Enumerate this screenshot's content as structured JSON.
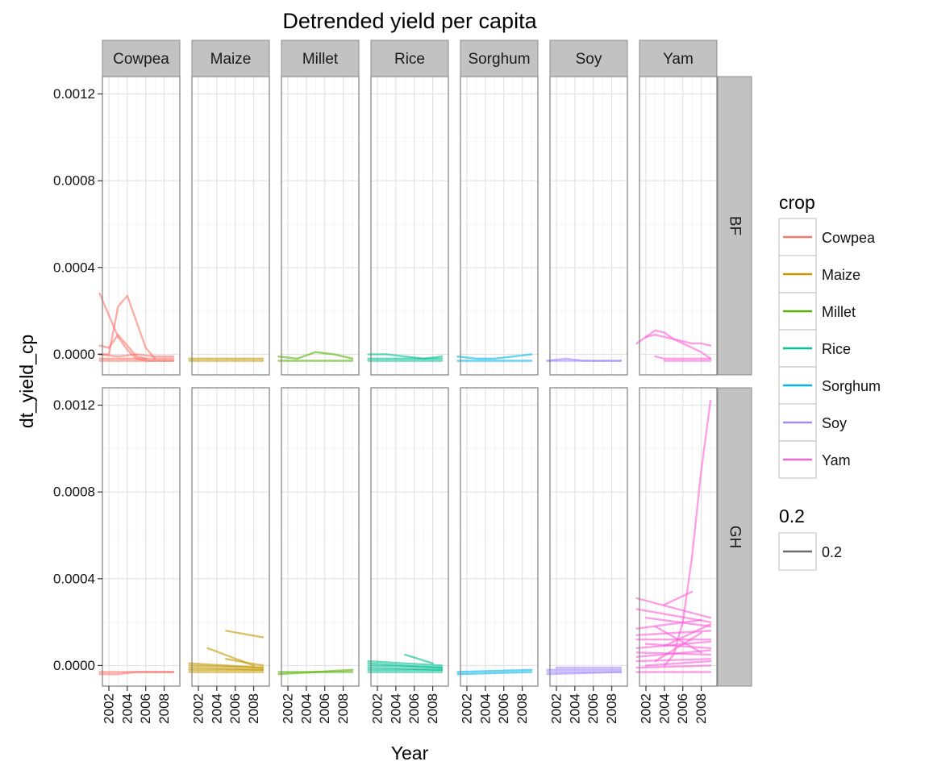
{
  "chart_data": {
    "type": "line",
    "title": "Detrended yield per capita",
    "xlabel": "Year",
    "ylabel": "dt_yield_cp",
    "xlim": [
      2001.3,
      2009.7
    ],
    "ylim": [
      -9.5e-05,
      0.00128
    ],
    "x_ticks": [
      2002,
      2004,
      2006,
      2008
    ],
    "x_tick_labels": [
      "2002",
      "2004",
      "2006",
      "2008"
    ],
    "y_ticks": [
      0.0,
      0.0004,
      0.0008,
      0.0012
    ],
    "y_tick_labels": [
      "0.0000",
      "0.0004",
      "0.0008",
      "0.0012"
    ],
    "grid": true,
    "facet_cols": [
      "Cowpea",
      "Maize",
      "Millet",
      "Rice",
      "Sorghum",
      "Soy",
      "Yam"
    ],
    "facet_rows": [
      "BF",
      "GH"
    ],
    "colors": {
      "Cowpea": "#F8766D",
      "Maize": "#C49A00",
      "Millet": "#53B400",
      "Rice": "#00C094",
      "Sorghum": "#00B6EB",
      "Soy": "#A58AFF",
      "Yam": "#FB61D7"
    },
    "legend": {
      "position": "right",
      "crop_title": "crop",
      "crop_items": [
        "Cowpea",
        "Maize",
        "Millet",
        "Rice",
        "Sorghum",
        "Soy",
        "Yam"
      ],
      "alpha_title": "0.2",
      "alpha_items": [
        "0.2"
      ]
    },
    "series": [
      {
        "facet": [
          "BF",
          "Cowpea"
        ],
        "x": [
          2001,
          2002,
          2003,
          2004,
          2005,
          2006,
          2007,
          2008,
          2009
        ],
        "y": [
          0.00028,
          0.00018,
          8e-05,
          2e-05,
          -2e-05,
          -3e-05,
          -3e-05,
          -3e-05,
          -3e-05
        ]
      },
      {
        "facet": [
          "BF",
          "Cowpea"
        ],
        "x": [
          2001,
          2002,
          2003,
          2004,
          2005,
          2006,
          2007
        ],
        "y": [
          0.0,
          0.0,
          0.00022,
          0.00027,
          0.00015,
          3e-05,
          -2e-05
        ]
      },
      {
        "facet": [
          "BF",
          "Cowpea"
        ],
        "x": [
          2001,
          2002,
          2003,
          2004,
          2005,
          2006
        ],
        "y": [
          4e-05,
          3e-05,
          9e-05,
          4e-05,
          -1e-05,
          -2e-05
        ]
      },
      {
        "facet": [
          "BF",
          "Cowpea"
        ],
        "x": [
          2001,
          2003,
          2005,
          2007,
          2009
        ],
        "y": [
          0.0,
          -1e-05,
          0.0,
          -1e-05,
          -1e-05
        ]
      },
      {
        "facet": [
          "BF",
          "Cowpea"
        ],
        "x": [
          2001,
          2003,
          2005,
          2007,
          2009
        ],
        "y": [
          -2e-05,
          -2e-05,
          -2e-05,
          -2e-05,
          -2e-05
        ]
      },
      {
        "facet": [
          "BF",
          "Cowpea"
        ],
        "x": [
          2001,
          2003,
          2005,
          2007,
          2009
        ],
        "y": [
          -3e-05,
          -3e-05,
          -3e-05,
          -3e-05,
          -3e-05
        ]
      },
      {
        "facet": [
          "BF",
          "Maize"
        ],
        "x": [
          2001,
          2003,
          2005,
          2007,
          2009
        ],
        "y": [
          -2e-05,
          -2e-05,
          -2e-05,
          -2e-05,
          -2e-05
        ]
      },
      {
        "facet": [
          "BF",
          "Maize"
        ],
        "x": [
          2001,
          2003,
          2005,
          2007,
          2009
        ],
        "y": [
          -3e-05,
          -3e-05,
          -3e-05,
          -3e-05,
          -3e-05
        ]
      },
      {
        "facet": [
          "BF",
          "Millet"
        ],
        "x": [
          2001,
          2003,
          2005,
          2007,
          2009
        ],
        "y": [
          -1e-05,
          -2e-05,
          1e-05,
          0.0,
          -2e-05
        ]
      },
      {
        "facet": [
          "BF",
          "Millet"
        ],
        "x": [
          2001,
          2003,
          2005,
          2007,
          2009
        ],
        "y": [
          -3e-05,
          -3e-05,
          -3e-05,
          -3e-05,
          -3e-05
        ]
      },
      {
        "facet": [
          "BF",
          "Rice"
        ],
        "x": [
          2001,
          2003,
          2005,
          2007,
          2009
        ],
        "y": [
          0.0,
          0.0,
          -1e-05,
          -2e-05,
          -1e-05
        ]
      },
      {
        "facet": [
          "BF",
          "Rice"
        ],
        "x": [
          2001,
          2003,
          2005,
          2007,
          2009
        ],
        "y": [
          -2e-05,
          -2e-05,
          -2e-05,
          -2e-05,
          -2e-05
        ]
      },
      {
        "facet": [
          "BF",
          "Rice"
        ],
        "x": [
          2001,
          2003,
          2005,
          2007,
          2009
        ],
        "y": [
          -3e-05,
          -3e-05,
          -3e-05,
          -3e-05,
          -3e-05
        ]
      },
      {
        "facet": [
          "BF",
          "Sorghum"
        ],
        "x": [
          2001,
          2003,
          2005,
          2007,
          2009
        ],
        "y": [
          -1e-05,
          -2e-05,
          -2e-05,
          -1e-05,
          0.0
        ]
      },
      {
        "facet": [
          "BF",
          "Sorghum"
        ],
        "x": [
          2001,
          2003,
          2005,
          2007,
          2009
        ],
        "y": [
          -3e-05,
          -3e-05,
          -3e-05,
          -3e-05,
          -3e-05
        ]
      },
      {
        "facet": [
          "BF",
          "Soy"
        ],
        "x": [
          2001,
          2003,
          2005,
          2007,
          2009
        ],
        "y": [
          -3e-05,
          -2e-05,
          -3e-05,
          -3e-05,
          -3e-05
        ]
      },
      {
        "facet": [
          "BF",
          "Soy"
        ],
        "x": [
          2001,
          2003,
          2005,
          2007,
          2009
        ],
        "y": [
          -3e-05,
          -3e-05,
          -3e-05,
          -3e-05,
          -3e-05
        ]
      },
      {
        "facet": [
          "BF",
          "Yam"
        ],
        "x": [
          2001,
          2002,
          2003,
          2004,
          2005,
          2006,
          2007,
          2008,
          2009
        ],
        "y": [
          5e-05,
          8e-05,
          0.00011,
          0.0001,
          7e-05,
          6e-05,
          5e-05,
          5e-05,
          4e-05
        ]
      },
      {
        "facet": [
          "BF",
          "Yam"
        ],
        "x": [
          2002,
          2003,
          2004,
          2005,
          2006,
          2007,
          2008,
          2009
        ],
        "y": [
          8e-05,
          9e-05,
          8e-05,
          7e-05,
          5e-05,
          3e-05,
          1e-05,
          -2e-05
        ]
      },
      {
        "facet": [
          "BF",
          "Yam"
        ],
        "x": [
          2003,
          2004,
          2005,
          2009
        ],
        "y": [
          -1e-05,
          -2e-05,
          -2e-05,
          -2e-05
        ]
      },
      {
        "facet": [
          "BF",
          "Yam"
        ],
        "x": [
          2004,
          2009
        ],
        "y": [
          -3e-05,
          -3e-05
        ]
      },
      {
        "facet": [
          "GH",
          "Cowpea"
        ],
        "x": [
          2001,
          2003,
          2005,
          2007,
          2009
        ],
        "y": [
          -3e-05,
          -3e-05,
          -3e-05,
          -3e-05,
          -3e-05
        ]
      },
      {
        "facet": [
          "GH",
          "Cowpea"
        ],
        "x": [
          2001,
          2003,
          2005,
          2007,
          2009
        ],
        "y": [
          -4e-05,
          -4e-05,
          -3e-05,
          -3e-05,
          -3e-05
        ]
      },
      {
        "facet": [
          "GH",
          "Maize"
        ],
        "x": [
          2005,
          2009
        ],
        "y": [
          0.00016,
          0.00013
        ]
      },
      {
        "facet": [
          "GH",
          "Maize"
        ],
        "x": [
          2003,
          2008
        ],
        "y": [
          8e-05,
          0.0
        ]
      },
      {
        "facet": [
          "GH",
          "Maize"
        ],
        "x": [
          2005,
          2009
        ],
        "y": [
          3e-05,
          0.0
        ]
      },
      {
        "facet": [
          "GH",
          "Maize"
        ],
        "x": [
          2001,
          2009
        ],
        "y": [
          1e-05,
          -1e-05
        ]
      },
      {
        "facet": [
          "GH",
          "Maize"
        ],
        "x": [
          2001,
          2009
        ],
        "y": [
          0.0,
          -1e-05
        ]
      },
      {
        "facet": [
          "GH",
          "Maize"
        ],
        "x": [
          2001,
          2009
        ],
        "y": [
          -1e-05,
          -2e-05
        ]
      },
      {
        "facet": [
          "GH",
          "Maize"
        ],
        "x": [
          2001,
          2009
        ],
        "y": [
          -2e-05,
          -2e-05
        ]
      },
      {
        "facet": [
          "GH",
          "Maize"
        ],
        "x": [
          2001,
          2009
        ],
        "y": [
          -3e-05,
          -3e-05
        ]
      },
      {
        "facet": [
          "GH",
          "Millet"
        ],
        "x": [
          2001,
          2009
        ],
        "y": [
          -3e-05,
          -3e-05
        ]
      },
      {
        "facet": [
          "GH",
          "Millet"
        ],
        "x": [
          2001,
          2009
        ],
        "y": [
          -4e-05,
          -2e-05
        ]
      },
      {
        "facet": [
          "GH",
          "Rice"
        ],
        "x": [
          2005,
          2008
        ],
        "y": [
          5e-05,
          1e-05
        ]
      },
      {
        "facet": [
          "GH",
          "Rice"
        ],
        "x": [
          2001,
          2009
        ],
        "y": [
          2e-05,
          0.0
        ]
      },
      {
        "facet": [
          "GH",
          "Rice"
        ],
        "x": [
          2001,
          2009
        ],
        "y": [
          1e-05,
          -1e-05
        ]
      },
      {
        "facet": [
          "GH",
          "Rice"
        ],
        "x": [
          2001,
          2009
        ],
        "y": [
          0.0,
          -1e-05
        ]
      },
      {
        "facet": [
          "GH",
          "Rice"
        ],
        "x": [
          2001,
          2009
        ],
        "y": [
          -1e-05,
          -2e-05
        ]
      },
      {
        "facet": [
          "GH",
          "Rice"
        ],
        "x": [
          2001,
          2009
        ],
        "y": [
          -2e-05,
          -2e-05
        ]
      },
      {
        "facet": [
          "GH",
          "Rice"
        ],
        "x": [
          2001,
          2009
        ],
        "y": [
          -3e-05,
          -3e-05
        ]
      },
      {
        "facet": [
          "GH",
          "Sorghum"
        ],
        "x": [
          2001,
          2009
        ],
        "y": [
          -3e-05,
          -2e-05
        ]
      },
      {
        "facet": [
          "GH",
          "Sorghum"
        ],
        "x": [
          2001,
          2009
        ],
        "y": [
          -4e-05,
          -3e-05
        ]
      },
      {
        "facet": [
          "GH",
          "Soy"
        ],
        "x": [
          2002,
          2009
        ],
        "y": [
          -1e-05,
          -1e-05
        ]
      },
      {
        "facet": [
          "GH",
          "Soy"
        ],
        "x": [
          2001,
          2009
        ],
        "y": [
          -2e-05,
          -2e-05
        ]
      },
      {
        "facet": [
          "GH",
          "Soy"
        ],
        "x": [
          2001,
          2009
        ],
        "y": [
          -3e-05,
          -3e-05
        ]
      },
      {
        "facet": [
          "GH",
          "Soy"
        ],
        "x": [
          2001,
          2009
        ],
        "y": [
          -4e-05,
          -3e-05
        ]
      },
      {
        "facet": [
          "GH",
          "Yam"
        ],
        "x": [
          2004,
          2005,
          2006,
          2007,
          2008,
          2009
        ],
        "y": [
          0.0,
          5e-05,
          0.0002,
          0.0005,
          0.0009,
          0.00122
        ]
      },
      {
        "facet": [
          "GH",
          "Yam"
        ],
        "x": [
          2001,
          2009
        ],
        "y": [
          0.00031,
          0.00022
        ]
      },
      {
        "facet": [
          "GH",
          "Yam"
        ],
        "x": [
          2004,
          2007
        ],
        "y": [
          0.00028,
          0.00034
        ]
      },
      {
        "facet": [
          "GH",
          "Yam"
        ],
        "x": [
          2001,
          2009
        ],
        "y": [
          0.00026,
          0.0002
        ]
      },
      {
        "facet": [
          "GH",
          "Yam"
        ],
        "x": [
          2002,
          2009
        ],
        "y": [
          0.00022,
          0.00018
        ]
      },
      {
        "facet": [
          "GH",
          "Yam"
        ],
        "x": [
          2001,
          2008
        ],
        "y": [
          0.00017,
          0.00021
        ]
      },
      {
        "facet": [
          "GH",
          "Yam"
        ],
        "x": [
          2001,
          2009
        ],
        "y": [
          0.00014,
          0.00016
        ]
      },
      {
        "facet": [
          "GH",
          "Yam"
        ],
        "x": [
          2001,
          2009
        ],
        "y": [
          0.00012,
          0.00012
        ]
      },
      {
        "facet": [
          "GH",
          "Yam"
        ],
        "x": [
          2002,
          2009
        ],
        "y": [
          0.0001,
          8e-05
        ]
      },
      {
        "facet": [
          "GH",
          "Yam"
        ],
        "x": [
          2001,
          2009
        ],
        "y": [
          8e-05,
          0.00011
        ]
      },
      {
        "facet": [
          "GH",
          "Yam"
        ],
        "x": [
          2001,
          2009
        ],
        "y": [
          6e-05,
          5e-05
        ]
      },
      {
        "facet": [
          "GH",
          "Yam"
        ],
        "x": [
          2001,
          2009
        ],
        "y": [
          4e-05,
          7e-05
        ]
      },
      {
        "facet": [
          "GH",
          "Yam"
        ],
        "x": [
          2001,
          2009
        ],
        "y": [
          2e-05,
          3e-05
        ]
      },
      {
        "facet": [
          "GH",
          "Yam"
        ],
        "x": [
          2002,
          2009
        ],
        "y": [
          0.0,
          2e-05
        ]
      },
      {
        "facet": [
          "GH",
          "Yam"
        ],
        "x": [
          2001,
          2009
        ],
        "y": [
          -1e-05,
          0.0
        ]
      },
      {
        "facet": [
          "GH",
          "Yam"
        ],
        "x": [
          2001,
          2009
        ],
        "y": [
          -3e-05,
          -3e-05
        ]
      },
      {
        "facet": [
          "GH",
          "Yam"
        ],
        "x": [
          2003,
          2008
        ],
        "y": [
          0.00018,
          6e-05
        ]
      },
      {
        "facet": [
          "GH",
          "Yam"
        ],
        "x": [
          2003,
          2008
        ],
        "y": [
          2e-05,
          0.00015
        ]
      },
      {
        "facet": [
          "GH",
          "Yam"
        ],
        "x": [
          2004,
          2009
        ],
        "y": [
          9e-05,
          0.00019
        ]
      }
    ]
  }
}
